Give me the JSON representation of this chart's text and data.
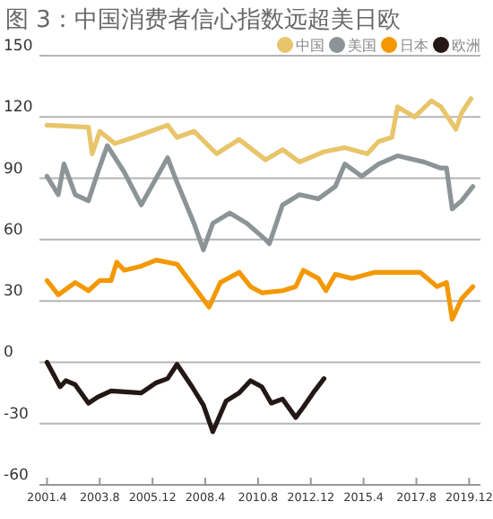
{
  "chart_data": {
    "type": "line",
    "title": "图 3：中国消费者信心指数远超美日欧",
    "xlim": [
      "2000-12",
      "2020-06"
    ],
    "ylim": [
      -60,
      150
    ],
    "yticks": [
      -60,
      -30,
      0,
      30,
      60,
      90,
      120,
      150
    ],
    "xticks": [
      {
        "value": "2001-04",
        "label": "2001.4"
      },
      {
        "value": "2003-08",
        "label": "2003.8"
      },
      {
        "value": "2005-12",
        "label": "2005.12"
      },
      {
        "value": "2008-04",
        "label": "2008.4"
      },
      {
        "value": "2010-08",
        "label": "2010.8"
      },
      {
        "value": "2012-12",
        "label": "2012.12"
      },
      {
        "value": "2015-04",
        "label": "2015.4"
      },
      {
        "value": "2017-08",
        "label": "2017.8"
      },
      {
        "value": "2019-12",
        "label": "2019.12"
      }
    ],
    "grid": "y",
    "legend": "top right",
    "series": [
      {
        "name": "中国",
        "color": "#e8c56a",
        "x": [
          "2001-04",
          "2003-02",
          "2003-04",
          "2003-08",
          "2004-04",
          "2005-02",
          "2006-08",
          "2007-01",
          "2007-10",
          "2008-10",
          "2009-10",
          "2010-12",
          "2011-09",
          "2012-06",
          "2013-07",
          "2014-06",
          "2015-06",
          "2015-12",
          "2016-07",
          "2016-10",
          "2017-07",
          "2018-04",
          "2018-09",
          "2019-05",
          "2019-08",
          "2020-01"
        ],
        "values": [
          116,
          115,
          102,
          113,
          107,
          110,
          116,
          110,
          113,
          102,
          109,
          99,
          104,
          98,
          103,
          105,
          102,
          108,
          110,
          125,
          120,
          128,
          125,
          114,
          122,
          129
        ]
      },
      {
        "name": "美国",
        "color": "#8c9497",
        "x": [
          "2001-04",
          "2001-10",
          "2002-01",
          "2002-07",
          "2003-02",
          "2003-07",
          "2003-12",
          "2004-09",
          "2005-06",
          "2006-08",
          "2007-01",
          "2007-10",
          "2008-03",
          "2008-08",
          "2009-05",
          "2010-02",
          "2010-12",
          "2011-02",
          "2011-09",
          "2012-06",
          "2013-04",
          "2014-01",
          "2014-06",
          "2015-03",
          "2015-12",
          "2016-10",
          "2017-12",
          "2018-09",
          "2018-12",
          "2019-03",
          "2019-08",
          "2020-02"
        ],
        "values": [
          91,
          82,
          97,
          82,
          79,
          93,
          106,
          93,
          77,
          100,
          88,
          68,
          55,
          68,
          73,
          68,
          60,
          58,
          77,
          82,
          80,
          86,
          97,
          91,
          97,
          101,
          98,
          95,
          95,
          75,
          79,
          86
        ]
      },
      {
        "name": "日本",
        "color": "#f39800",
        "x": [
          "2001-04",
          "2001-10",
          "2002-07",
          "2003-02",
          "2003-08",
          "2004-02",
          "2004-05",
          "2004-09",
          "2005-06",
          "2006-02",
          "2007-01",
          "2007-10",
          "2008-06",
          "2008-12",
          "2009-10",
          "2010-04",
          "2010-10",
          "2011-09",
          "2012-04",
          "2012-08",
          "2013-04",
          "2013-08",
          "2014-01",
          "2014-10",
          "2015-10",
          "2017-10",
          "2018-07",
          "2018-12",
          "2019-03",
          "2019-08",
          "2020-02"
        ],
        "values": [
          40,
          33,
          39,
          35,
          40,
          40,
          49,
          45,
          47,
          50,
          48,
          37,
          27,
          39,
          44,
          37,
          34,
          35,
          37,
          45,
          41,
          35,
          43,
          41,
          44,
          44,
          37,
          39,
          21,
          31,
          37
        ]
      },
      {
        "name": "欧洲",
        "color": "#231815",
        "x": [
          "2001-04",
          "2001-11",
          "2002-02",
          "2002-07",
          "2003-02",
          "2003-07",
          "2004-02",
          "2005-06",
          "2006-02",
          "2006-08",
          "2007-01",
          "2007-09",
          "2008-03",
          "2008-08",
          "2009-03",
          "2009-10",
          "2010-04",
          "2010-10",
          "2011-03",
          "2011-09",
          "2012-04",
          "2012-08",
          "2013-02",
          "2013-07"
        ],
        "values": [
          0,
          -12,
          -9,
          -11,
          -20,
          -17,
          -14,
          -15,
          -10,
          -8,
          -1,
          -12,
          -21,
          -34,
          -19,
          -15,
          -9,
          -12,
          -20,
          -18,
          -27,
          -22,
          -14,
          -8
        ]
      }
    ]
  }
}
